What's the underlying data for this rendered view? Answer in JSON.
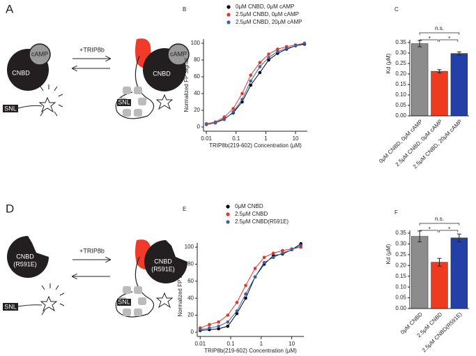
{
  "diagrams": [
    {
      "panel": "A",
      "texts": [
        "CNBD",
        "cAMP",
        "+TRIP8b",
        "SNL",
        "CNBD",
        "cAMP",
        "SNL"
      ]
    },
    {
      "panel": "D",
      "texts": [
        "CNBD",
        "(R591E)",
        "+TRIP8b",
        "SNL",
        "CNBD",
        "(R591E)",
        "SNL"
      ]
    }
  ],
  "chart_data": [
    {
      "type": "line",
      "panel": "B",
      "xlabel": "TRIP8b(219-602) Concentration (μM)",
      "ylabel": "Normalized FP Signal",
      "x": [
        0.01,
        0.02,
        0.04,
        0.08,
        0.16,
        0.31,
        0.63,
        1.25,
        2.5,
        5,
        10,
        20
      ],
      "series": [
        {
          "name": "0μM CNBD, 0μM cAMP",
          "color": "#000000",
          "values": [
            3,
            5,
            10,
            17,
            30,
            50,
            65,
            80,
            88,
            93,
            97,
            99
          ]
        },
        {
          "name": "2.5μM CNBD, 0μM cAMP",
          "color": "#e8332a",
          "values": [
            4,
            6,
            12,
            22,
            40,
            62,
            77,
            87,
            93,
            96,
            98,
            100
          ]
        },
        {
          "name": "2.5μM CNBD, 20μM cAMP",
          "color": "#3a62a8",
          "values": [
            3,
            5,
            9,
            18,
            33,
            55,
            72,
            83,
            90,
            94,
            97,
            100
          ]
        }
      ],
      "log_x": true,
      "xlim": [
        0.008,
        25
      ],
      "xticks": [
        0.01,
        0.1,
        1,
        10
      ],
      "ylim": [
        -5,
        105
      ],
      "yticks": [
        0,
        20,
        40,
        60,
        80,
        100
      ]
    },
    {
      "type": "bar",
      "panel": "C",
      "ylabel": "Kd (μM)",
      "categories": [
        "0μM CNBD, 0μM cAMP",
        "2.5μM CNBD, 0μM cAMP",
        "2.5μM CNBD, 20μM cAMP"
      ],
      "values": [
        0.345,
        0.213,
        0.298
      ],
      "errors": [
        0.015,
        0.008,
        0.008
      ],
      "colors": [
        "#8c8c8c",
        "#f03a1f",
        "#2340a8"
      ],
      "annotations": [
        "n.s.",
        "*",
        "*"
      ],
      "ylim": [
        0,
        0.35
      ],
      "yticks": [
        {
          "value": 0,
          "label": "0.00"
        },
        {
          "value": 0.05,
          "label": "0.05"
        },
        {
          "value": 0.1,
          "label": "0.10"
        },
        {
          "value": 0.15,
          "label": "0.15"
        },
        {
          "value": 0.2,
          "label": "0.20"
        },
        {
          "value": 0.25,
          "label": "0.25"
        },
        {
          "value": 0.3,
          "label": "0.30"
        },
        {
          "value": 0.35,
          "label": "0.35"
        }
      ]
    },
    {
      "type": "line",
      "panel": "E",
      "xlabel": "TRIP8b(219-602) Concentration (μM)",
      "ylabel": "Normalized FP Signal",
      "x": [
        0.01,
        0.02,
        0.04,
        0.08,
        0.16,
        0.31,
        0.63,
        1.25,
        2.5,
        5,
        10,
        20
      ],
      "series": [
        {
          "name": "0μM CNBD",
          "color": "#000000",
          "values": [
            2,
            3,
            4,
            7,
            22,
            40,
            65,
            80,
            90,
            92,
            97,
            104
          ]
        },
        {
          "name": "2.5μM CNBD",
          "color": "#e8332a",
          "values": [
            5,
            9,
            12,
            20,
            35,
            55,
            75,
            88,
            93,
            96,
            98,
            100
          ]
        },
        {
          "name": "2.5μM CNBD(R591E)",
          "color": "#3a62a8",
          "values": [
            3,
            5,
            7,
            12,
            25,
            45,
            65,
            82,
            88,
            93,
            97,
            102
          ]
        }
      ],
      "log_x": true,
      "xlim": [
        0.008,
        25
      ],
      "xticks": [
        0.01,
        0.1,
        1,
        10
      ],
      "ylim": [
        -5,
        105
      ],
      "yticks": [
        0,
        20,
        40,
        60,
        80,
        100
      ]
    },
    {
      "type": "bar",
      "panel": "F",
      "ylabel": "Kd (μM)",
      "categories": [
        "0μM CNBD",
        "2.5μM CNBD",
        "2.5μM CNBD(R591E)"
      ],
      "values": [
        0.335,
        0.215,
        0.328
      ],
      "errors": [
        0.025,
        0.018,
        0.018
      ],
      "colors": [
        "#8c8c8c",
        "#f03a1f",
        "#2340a8"
      ],
      "annotations": [
        "n.s.",
        "*",
        "*"
      ],
      "ylim": [
        0,
        0.35
      ],
      "yticks": [
        {
          "value": 0,
          "label": "0.00"
        },
        {
          "value": 0.05,
          "label": "0.05"
        },
        {
          "value": 0.1,
          "label": "0.10"
        },
        {
          "value": 0.15,
          "label": "0.15"
        },
        {
          "value": 0.2,
          "label": "0.20"
        },
        {
          "value": 0.25,
          "label": "0.25"
        },
        {
          "value": 0.3,
          "label": "0.30"
        },
        {
          "value": 0.35,
          "label": "0.35"
        }
      ]
    }
  ]
}
